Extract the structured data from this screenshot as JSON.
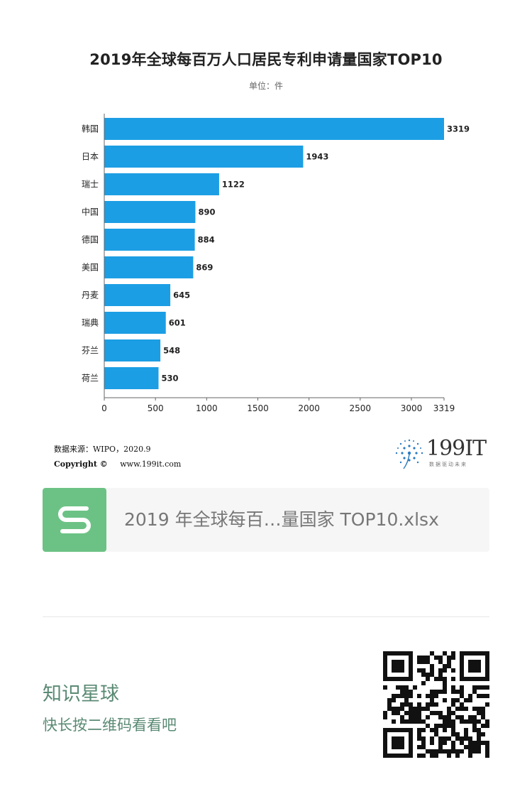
{
  "chart_data": {
    "type": "bar",
    "orientation": "horizontal",
    "title": "2019年全球每百万人口居民专利申请量国家TOP10",
    "subtitle": "单位：件",
    "categories": [
      "韩国",
      "日本",
      "瑞士",
      "中国",
      "德国",
      "美国",
      "丹麦",
      "瑞典",
      "芬兰",
      "荷兰"
    ],
    "values": [
      3319,
      1943,
      1122,
      890,
      884,
      869,
      645,
      601,
      548,
      530
    ],
    "xlabel": "",
    "ylabel": "",
    "xlim": [
      0,
      3319
    ],
    "xticks": [
      0,
      500,
      1000,
      1500,
      2000,
      2500,
      3000,
      3319
    ],
    "bar_color": "#1c9ee4",
    "grid": false
  },
  "source": {
    "line": "数据来源：WIPO，2020.9",
    "copyright_label": "Copyright ©",
    "website": "www.199it.com"
  },
  "logo": {
    "text": "199IT",
    "tagline": "数据驱动未来",
    "color": "#2b7bbf"
  },
  "file_card": {
    "icon": "spreadsheet-s-icon",
    "icon_color": "#6cc285",
    "filename": "2019 年全球每百…量国家 TOP10.xlsx"
  },
  "promo": {
    "title": "知识星球",
    "subtitle": "快长按二维码看看吧",
    "color": "#5a8a74"
  }
}
